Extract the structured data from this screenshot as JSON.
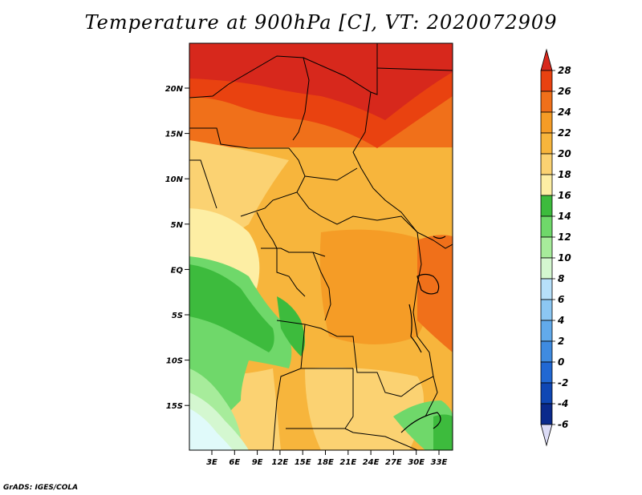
{
  "title": "Temperature at 900hPa [C], VT: 2020072909",
  "credit": "GrADS: IGES/COLA",
  "axes": {
    "lat_labels": [
      "20N",
      "15N",
      "10N",
      "5N",
      "EQ",
      "5S",
      "10S",
      "15S"
    ],
    "lon_labels": [
      "3E",
      "6E",
      "9E",
      "12E",
      "15E",
      "18E",
      "21E",
      "24E",
      "27E",
      "30E",
      "33E"
    ]
  },
  "colorbar": {
    "labels": [
      "28",
      "26",
      "24",
      "22",
      "20",
      "18",
      "16",
      "14",
      "12",
      "10",
      "8",
      "6",
      "4",
      "2",
      "0",
      "-2",
      "-4",
      "-6"
    ],
    "colors": [
      "#d7281c",
      "#e94210",
      "#f0701a",
      "#f59c26",
      "#f7b53c",
      "#fbd272",
      "#fdeea4",
      "#3dbb3d",
      "#6fd86a",
      "#a7ec9b",
      "#d4f7d0",
      "#b7e0fa",
      "#8cc7f3",
      "#62aaeb",
      "#3f8be0",
      "#2168d3",
      "#0f47b4",
      "#0a2a8c",
      "#081760"
    ],
    "top_color": "#d7281c",
    "bottom_color": "#dcdcf6"
  }
}
